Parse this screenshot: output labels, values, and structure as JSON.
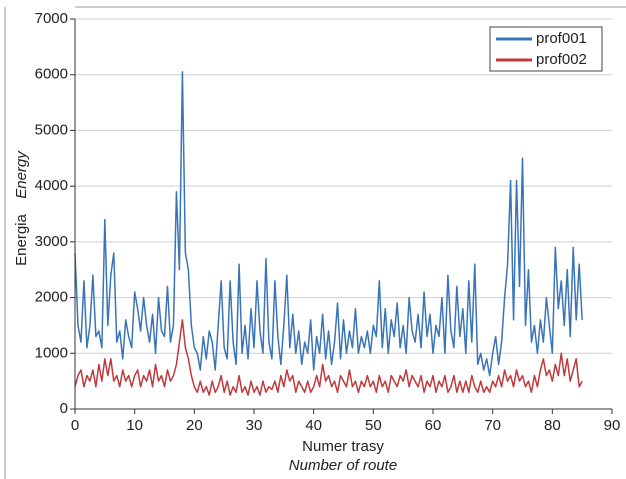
{
  "chart_data": {
    "type": "line",
    "x_label": [
      "Numer trasy",
      "Number of route"
    ],
    "y_label": [
      "Energia",
      "Energy"
    ],
    "xlim": [
      0,
      90
    ],
    "xticks": [
      0,
      10,
      20,
      30,
      40,
      50,
      60,
      70,
      80,
      90
    ],
    "ylim": [
      0,
      7000
    ],
    "yticks": [
      0,
      1000,
      2000,
      3000,
      4000,
      5000,
      6000,
      7000
    ],
    "grid": true,
    "legend": "upper right",
    "x": [
      0,
      0.5,
      1,
      1.5,
      2,
      2.5,
      3,
      3.5,
      4,
      4.5,
      5,
      5.5,
      6,
      6.5,
      7,
      7.5,
      8,
      8.5,
      9,
      9.5,
      10,
      10.5,
      11,
      11.5,
      12,
      12.5,
      13,
      13.5,
      14,
      14.5,
      15,
      15.5,
      16,
      16.5,
      17,
      17.5,
      18,
      18.5,
      19,
      19.5,
      20,
      20.5,
      21,
      21.5,
      22,
      22.5,
      23,
      23.5,
      24,
      24.5,
      25,
      25.5,
      26,
      26.5,
      27,
      27.5,
      28,
      28.5,
      29,
      29.5,
      30,
      30.5,
      31,
      31.5,
      32,
      32.5,
      33,
      33.5,
      34,
      34.5,
      35,
      35.5,
      36,
      36.5,
      37,
      37.5,
      38,
      38.5,
      39,
      39.5,
      40,
      40.5,
      41,
      41.5,
      42,
      42.5,
      43,
      43.5,
      44,
      44.5,
      45,
      45.5,
      46,
      46.5,
      47,
      47.5,
      48,
      48.5,
      49,
      49.5,
      50,
      50.5,
      51,
      51.5,
      52,
      52.5,
      53,
      53.5,
      54,
      54.5,
      55,
      55.5,
      56,
      56.5,
      57,
      57.5,
      58,
      58.5,
      59,
      59.5,
      60,
      60.5,
      61,
      61.5,
      62,
      62.5,
      63,
      63.5,
      64,
      64.5,
      65,
      65.5,
      66,
      66.5,
      67,
      67.5,
      68,
      68.5,
      69,
      69.5,
      70,
      70.5,
      71,
      71.5,
      72,
      72.5,
      73,
      73.5,
      74,
      74.5,
      75,
      75.5,
      76,
      76.5,
      77,
      77.5,
      78,
      78.5,
      79,
      79.5,
      80,
      80.5,
      81,
      81.5,
      82,
      82.5,
      83,
      83.5,
      84,
      84.5,
      85
    ],
    "series": [
      {
        "name": "prof001",
        "color": "#3a74b8",
        "values": [
          2800,
          1500,
          1200,
          2300,
          1100,
          1500,
          2400,
          1300,
          1400,
          1100,
          3400,
          1500,
          2400,
          2800,
          1200,
          1400,
          900,
          1600,
          1300,
          1100,
          2100,
          1800,
          1400,
          2000,
          1500,
          1200,
          1700,
          1000,
          2000,
          1400,
          1300,
          2200,
          1200,
          1500,
          3900,
          2500,
          6050,
          2800,
          2500,
          1500,
          1100,
          1000,
          700,
          1300,
          900,
          1400,
          1200,
          700,
          1500,
          2300,
          1100,
          900,
          2300,
          1200,
          800,
          2600,
          1000,
          1500,
          900,
          1800,
          1100,
          2300,
          1400,
          1000,
          2700,
          1200,
          900,
          2300,
          1300,
          800,
          1500,
          2400,
          1100,
          1700,
          1000,
          1400,
          800,
          1200,
          1000,
          1600,
          700,
          1300,
          1000,
          1700,
          900,
          1400,
          800,
          1200,
          1900,
          900,
          1600,
          1000,
          1400,
          1100,
          1800,
          1000,
          1300,
          1100,
          1400,
          1000,
          1500,
          1300,
          2300,
          1100,
          1800,
          1000,
          1600,
          1300,
          1900,
          1100,
          1500,
          1000,
          2000,
          1400,
          1200,
          1700,
          1100,
          2100,
          1300,
          1700,
          1000,
          1500,
          1300,
          2000,
          1000,
          2400,
          1400,
          1100,
          2200,
          1300,
          1800,
          1000,
          2300,
          1200,
          2600,
          800,
          1000,
          700,
          900,
          600,
          1000,
          1300,
          800,
          1200,
          2000,
          2600,
          4100,
          1600,
          4100,
          2200,
          4500,
          1500,
          2500,
          1200,
          1500,
          1000,
          1600,
          1200,
          2000,
          1500,
          1000,
          2900,
          1800,
          2300,
          1500,
          2500,
          1300,
          2900,
          1600,
          2600,
          1600
        ]
      },
      {
        "name": "prof002",
        "color": "#c0393b",
        "values": [
          400,
          600,
          700,
          400,
          600,
          500,
          700,
          400,
          800,
          500,
          900,
          600,
          900,
          500,
          600,
          400,
          700,
          500,
          600,
          400,
          600,
          700,
          400,
          600,
          500,
          700,
          400,
          800,
          500,
          600,
          400,
          700,
          500,
          600,
          800,
          1200,
          1600,
          1100,
          900,
          600,
          400,
          300,
          500,
          300,
          400,
          250,
          500,
          300,
          400,
          600,
          300,
          500,
          250,
          400,
          300,
          600,
          300,
          400,
          250,
          500,
          300,
          400,
          250,
          500,
          300,
          400,
          350,
          500,
          300,
          600,
          400,
          700,
          500,
          600,
          300,
          500,
          400,
          300,
          500,
          300,
          400,
          600,
          400,
          800,
          500,
          600,
          400,
          500,
          300,
          600,
          500,
          400,
          700,
          400,
          500,
          300,
          500,
          400,
          600,
          400,
          500,
          300,
          600,
          400,
          500,
          300,
          600,
          500,
          400,
          600,
          500,
          700,
          400,
          600,
          500,
          400,
          600,
          300,
          500,
          400,
          600,
          300,
          500,
          400,
          600,
          300,
          400,
          600,
          300,
          500,
          300,
          500,
          300,
          600,
          400,
          300,
          500,
          300,
          400,
          300,
          500,
          400,
          600,
          400,
          700,
          500,
          600,
          400,
          700,
          500,
          600,
          400,
          500,
          300,
          600,
          400,
          700,
          900,
          600,
          700,
          500,
          800,
          600,
          1000,
          600,
          900,
          500,
          700,
          900,
          400,
          500
        ]
      }
    ]
  }
}
